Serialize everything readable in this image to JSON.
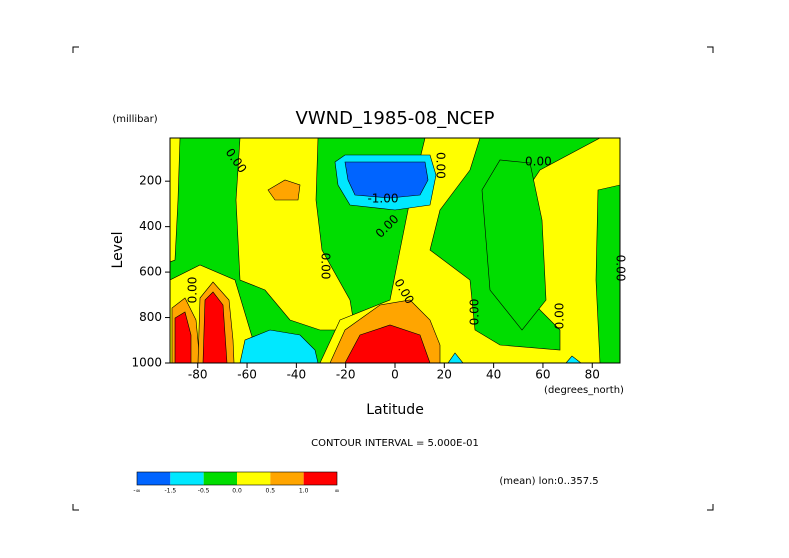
{
  "chart_data": {
    "type": "contour",
    "title": "VWND_1985-08_NCEP",
    "y_units": "(millibar)",
    "ylabel": "Level",
    "xlabel": "Latitude",
    "x_units": "(degrees_north)",
    "xlim": [
      -91.25,
      91.25
    ],
    "ylim": [
      1000,
      10
    ],
    "xticks": [
      -80,
      -60,
      -40,
      -20,
      0,
      20,
      40,
      60,
      80
    ],
    "yticks": [
      200,
      400,
      600,
      800,
      1000
    ],
    "contour_interval": "CONTOUR INTERVAL = 5.000E-01",
    "note": "(mean) lon:0..357.5",
    "annotations": [
      "0.00",
      "0.00",
      "0.00",
      "0.00",
      "0.00",
      "0.00",
      "0.00",
      "0.00",
      "0.00",
      "0.00",
      "-1.00"
    ],
    "colorbar": {
      "colors": [
        "#0064ff",
        "#00e8ff",
        "#00dd00",
        "#ffff00",
        "#ffa500",
        "#ff0000"
      ],
      "labels": [
        "-∞",
        "-1.5",
        "-0.5",
        "0.0",
        "0.5",
        "1.0",
        "∞"
      ]
    }
  }
}
